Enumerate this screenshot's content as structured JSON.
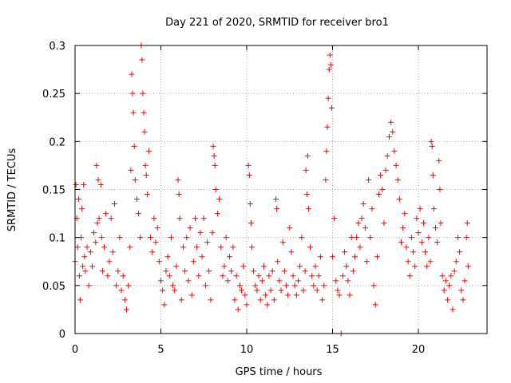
{
  "chart_data": {
    "type": "scatter",
    "title": "Day 221 of 2020, SRMTID for receiver bro1",
    "xlabel": "GPS time / hours",
    "ylabel": "SRMTID / TECUs",
    "xlim": [
      0,
      24
    ],
    "ylim": [
      0,
      0.3
    ],
    "xticks": [
      0,
      5,
      10,
      15,
      20
    ],
    "xtick_labels": [
      "0",
      "5",
      "10",
      "15",
      "20"
    ],
    "yticks": [
      0,
      0.05,
      0.1,
      0.15,
      0.2,
      0.25,
      0.3
    ],
    "ytick_labels": [
      "0",
      "0.05",
      "0.1",
      "0.15",
      "0.2",
      "0.25",
      "0.3"
    ],
    "grid": true,
    "marker": "+",
    "color": "#ff0000",
    "series": [
      {
        "name": "SRMTID",
        "points": [
          [
            0.0,
            0.075
          ],
          [
            0.05,
            0.155
          ],
          [
            0.1,
            0.12
          ],
          [
            0.15,
            0.09
          ],
          [
            0.2,
            0.14
          ],
          [
            0.25,
            0.06
          ],
          [
            0.3,
            0.035
          ],
          [
            0.35,
            0.1
          ],
          [
            0.4,
            0.13
          ],
          [
            0.45,
            0.07
          ],
          [
            0.5,
            0.155
          ],
          [
            0.55,
            0.08
          ],
          [
            0.6,
            0.065
          ],
          [
            0.7,
            0.09
          ],
          [
            0.8,
            0.05
          ],
          [
            0.9,
            0.085
          ],
          [
            1.0,
            0.07
          ],
          [
            1.1,
            0.105
          ],
          [
            1.2,
            0.095
          ],
          [
            1.25,
            0.175
          ],
          [
            1.3,
            0.115
          ],
          [
            1.35,
            0.16
          ],
          [
            1.4,
            0.12
          ],
          [
            1.5,
            0.155
          ],
          [
            1.55,
            0.1
          ],
          [
            1.6,
            0.065
          ],
          [
            1.7,
            0.09
          ],
          [
            1.8,
            0.125
          ],
          [
            1.9,
            0.06
          ],
          [
            2.0,
            0.075
          ],
          [
            2.1,
            0.12
          ],
          [
            2.2,
            0.085
          ],
          [
            2.3,
            0.135
          ],
          [
            2.4,
            0.05
          ],
          [
            2.5,
            0.065
          ],
          [
            2.6,
            0.1
          ],
          [
            2.7,
            0.045
          ],
          [
            2.8,
            0.06
          ],
          [
            2.9,
            0.035
          ],
          [
            3.0,
            0.025
          ],
          [
            3.1,
            0.05
          ],
          [
            3.2,
            0.09
          ],
          [
            3.25,
            0.17
          ],
          [
            3.3,
            0.27
          ],
          [
            3.35,
            0.25
          ],
          [
            3.4,
            0.23
          ],
          [
            3.45,
            0.195
          ],
          [
            3.5,
            0.16
          ],
          [
            3.6,
            0.14
          ],
          [
            3.7,
            0.125
          ],
          [
            3.8,
            0.1
          ],
          [
            3.85,
            0.3
          ],
          [
            3.9,
            0.285
          ],
          [
            3.95,
            0.25
          ],
          [
            4.0,
            0.23
          ],
          [
            4.05,
            0.21
          ],
          [
            4.1,
            0.175
          ],
          [
            4.15,
            0.165
          ],
          [
            4.2,
            0.145
          ],
          [
            4.3,
            0.19
          ],
          [
            4.4,
            0.1
          ],
          [
            4.5,
            0.085
          ],
          [
            4.6,
            0.12
          ],
          [
            4.7,
            0.095
          ],
          [
            4.8,
            0.11
          ],
          [
            4.9,
            0.075
          ],
          [
            5.0,
            0.055
          ],
          [
            5.1,
            0.045
          ],
          [
            5.2,
            0.03
          ],
          [
            5.3,
            0.065
          ],
          [
            5.4,
            0.08
          ],
          [
            5.5,
            0.06
          ],
          [
            5.6,
            0.1
          ],
          [
            5.7,
            0.05
          ],
          [
            5.8,
            0.045
          ],
          [
            5.9,
            0.07
          ],
          [
            6.0,
            0.16
          ],
          [
            6.05,
            0.145
          ],
          [
            6.1,
            0.12
          ],
          [
            6.2,
            0.035
          ],
          [
            6.3,
            0.09
          ],
          [
            6.4,
            0.065
          ],
          [
            6.5,
            0.1
          ],
          [
            6.6,
            0.055
          ],
          [
            6.7,
            0.11
          ],
          [
            6.8,
            0.04
          ],
          [
            6.9,
            0.075
          ],
          [
            7.0,
            0.12
          ],
          [
            7.1,
            0.09
          ],
          [
            7.2,
            0.06
          ],
          [
            7.3,
            0.105
          ],
          [
            7.4,
            0.08
          ],
          [
            7.5,
            0.12
          ],
          [
            7.6,
            0.05
          ],
          [
            7.7,
            0.095
          ],
          [
            7.8,
            0.065
          ],
          [
            7.9,
            0.035
          ],
          [
            8.0,
            0.105
          ],
          [
            8.05,
            0.195
          ],
          [
            8.1,
            0.185
          ],
          [
            8.15,
            0.175
          ],
          [
            8.2,
            0.15
          ],
          [
            8.3,
            0.125
          ],
          [
            8.4,
            0.14
          ],
          [
            8.5,
            0.09
          ],
          [
            8.6,
            0.06
          ],
          [
            8.7,
            0.07
          ],
          [
            8.8,
            0.1
          ],
          [
            8.9,
            0.055
          ],
          [
            9.0,
            0.08
          ],
          [
            9.1,
            0.065
          ],
          [
            9.2,
            0.09
          ],
          [
            9.3,
            0.035
          ],
          [
            9.4,
            0.06
          ],
          [
            9.5,
            0.025
          ],
          [
            9.6,
            0.05
          ],
          [
            9.7,
            0.045
          ],
          [
            9.8,
            0.07
          ],
          [
            9.9,
            0.04
          ],
          [
            10.0,
            0.03
          ],
          [
            10.1,
            0.175
          ],
          [
            10.15,
            0.165
          ],
          [
            10.2,
            0.135
          ],
          [
            10.25,
            0.115
          ],
          [
            10.3,
            0.09
          ],
          [
            10.4,
            0.065
          ],
          [
            10.5,
            0.05
          ],
          [
            10.6,
            0.045
          ],
          [
            10.7,
            0.06
          ],
          [
            10.8,
            0.035
          ],
          [
            10.9,
            0.055
          ],
          [
            11.0,
            0.07
          ],
          [
            11.1,
            0.04
          ],
          [
            11.2,
            0.03
          ],
          [
            11.3,
            0.06
          ],
          [
            11.4,
            0.045
          ],
          [
            11.5,
            0.065
          ],
          [
            11.6,
            0.035
          ],
          [
            11.7,
            0.14
          ],
          [
            11.75,
            0.13
          ],
          [
            11.8,
            0.075
          ],
          [
            11.9,
            0.055
          ],
          [
            12.0,
            0.045
          ],
          [
            12.1,
            0.095
          ],
          [
            12.2,
            0.065
          ],
          [
            12.3,
            0.05
          ],
          [
            12.4,
            0.04
          ],
          [
            12.5,
            0.11
          ],
          [
            12.6,
            0.085
          ],
          [
            12.7,
            0.06
          ],
          [
            12.8,
            0.05
          ],
          [
            12.9,
            0.04
          ],
          [
            13.0,
            0.055
          ],
          [
            13.1,
            0.07
          ],
          [
            13.2,
            0.1
          ],
          [
            13.3,
            0.045
          ],
          [
            13.4,
            0.065
          ],
          [
            13.45,
            0.17
          ],
          [
            13.5,
            0.145
          ],
          [
            13.55,
            0.185
          ],
          [
            13.6,
            0.13
          ],
          [
            13.7,
            0.09
          ],
          [
            13.8,
            0.06
          ],
          [
            13.9,
            0.05
          ],
          [
            14.0,
            0.07
          ],
          [
            14.1,
            0.045
          ],
          [
            14.2,
            0.06
          ],
          [
            14.3,
            0.08
          ],
          [
            14.4,
            0.035
          ],
          [
            14.5,
            0.05
          ],
          [
            14.6,
            0.16
          ],
          [
            14.65,
            0.19
          ],
          [
            14.7,
            0.215
          ],
          [
            14.75,
            0.245
          ],
          [
            14.8,
            0.275
          ],
          [
            14.85,
            0.29
          ],
          [
            14.9,
            0.28
          ],
          [
            14.95,
            0.235
          ],
          [
            15.0,
            0.08
          ],
          [
            15.1,
            0.12
          ],
          [
            15.2,
            0.055
          ],
          [
            15.3,
            0.045
          ],
          [
            15.4,
            0.04
          ],
          [
            15.5,
            0.0
          ],
          [
            15.6,
            0.06
          ],
          [
            15.7,
            0.085
          ],
          [
            15.8,
            0.07
          ],
          [
            15.9,
            0.055
          ],
          [
            16.0,
            0.04
          ],
          [
            16.1,
            0.1
          ],
          [
            16.2,
            0.065
          ],
          [
            16.3,
            0.08
          ],
          [
            16.4,
            0.1
          ],
          [
            16.5,
            0.115
          ],
          [
            16.6,
            0.09
          ],
          [
            16.7,
            0.12
          ],
          [
            16.8,
            0.135
          ],
          [
            16.9,
            0.11
          ],
          [
            17.0,
            0.075
          ],
          [
            17.1,
            0.16
          ],
          [
            17.2,
            0.1
          ],
          [
            17.3,
            0.13
          ],
          [
            17.4,
            0.05
          ],
          [
            17.5,
            0.03
          ],
          [
            17.6,
            0.08
          ],
          [
            17.7,
            0.145
          ],
          [
            17.8,
            0.165
          ],
          [
            17.9,
            0.15
          ],
          [
            18.0,
            0.115
          ],
          [
            18.1,
            0.17
          ],
          [
            18.2,
            0.185
          ],
          [
            18.3,
            0.205
          ],
          [
            18.4,
            0.22
          ],
          [
            18.5,
            0.21
          ],
          [
            18.6,
            0.19
          ],
          [
            18.7,
            0.175
          ],
          [
            18.8,
            0.16
          ],
          [
            18.9,
            0.14
          ],
          [
            19.0,
            0.095
          ],
          [
            19.1,
            0.11
          ],
          [
            19.2,
            0.125
          ],
          [
            19.3,
            0.09
          ],
          [
            19.4,
            0.075
          ],
          [
            19.5,
            0.06
          ],
          [
            19.6,
            0.1
          ],
          [
            19.7,
            0.085
          ],
          [
            19.8,
            0.07
          ],
          [
            19.9,
            0.12
          ],
          [
            20.0,
            0.105
          ],
          [
            20.1,
            0.13
          ],
          [
            20.2,
            0.095
          ],
          [
            20.3,
            0.115
          ],
          [
            20.4,
            0.085
          ],
          [
            20.5,
            0.07
          ],
          [
            20.6,
            0.1
          ],
          [
            20.7,
            0.075
          ],
          [
            20.75,
            0.2
          ],
          [
            20.8,
            0.195
          ],
          [
            20.85,
            0.165
          ],
          [
            20.9,
            0.13
          ],
          [
            21.0,
            0.11
          ],
          [
            21.1,
            0.095
          ],
          [
            21.2,
            0.18
          ],
          [
            21.25,
            0.15
          ],
          [
            21.3,
            0.115
          ],
          [
            21.4,
            0.06
          ],
          [
            21.5,
            0.045
          ],
          [
            21.6,
            0.055
          ],
          [
            21.7,
            0.035
          ],
          [
            21.8,
            0.05
          ],
          [
            21.9,
            0.06
          ],
          [
            22.0,
            0.025
          ],
          [
            22.1,
            0.065
          ],
          [
            22.2,
            0.075
          ],
          [
            22.3,
            0.1
          ],
          [
            22.4,
            0.085
          ],
          [
            22.5,
            0.045
          ],
          [
            22.6,
            0.035
          ],
          [
            22.7,
            0.055
          ],
          [
            22.8,
            0.1
          ],
          [
            22.85,
            0.115
          ],
          [
            22.9,
            0.07
          ]
        ]
      }
    ]
  }
}
